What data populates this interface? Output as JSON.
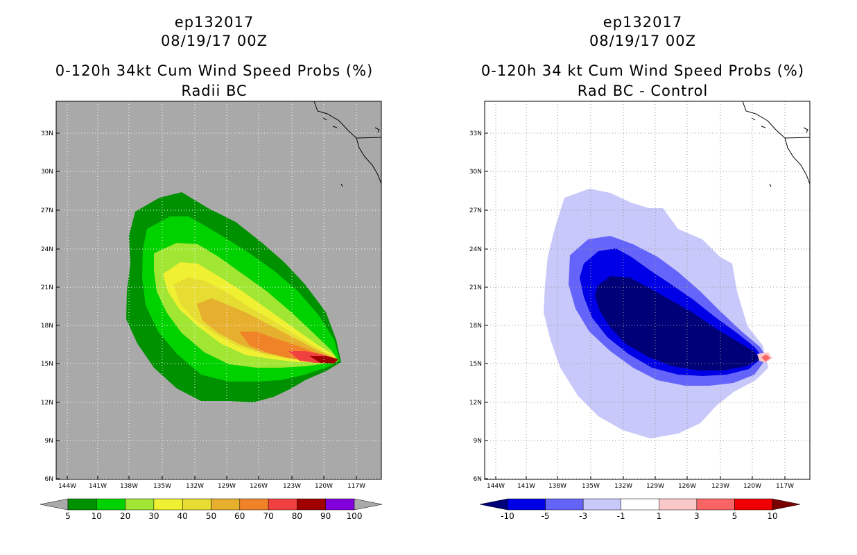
{
  "panels": [
    {
      "id": "left",
      "storm_id": "ep132017",
      "datetime": "08/19/17 00Z",
      "title": "0-120h 34kt Cum Wind Speed Probs (%)",
      "subtitle": "Radii BC",
      "background_color": "#a9a9a9",
      "grid_color": "#ffffff",
      "colorbar": {
        "colors": [
          "#009100",
          "#00d200",
          "#a0e632",
          "#f0f032",
          "#e6dc32",
          "#e6af2d",
          "#f08228",
          "#f04040",
          "#a00000",
          "#8200dc"
        ],
        "under_color": "#a9a9a9",
        "over_color": "#a9a9a9",
        "labels": [
          "5",
          "10",
          "20",
          "30",
          "40",
          "50",
          "60",
          "70",
          "80",
          "90",
          "100"
        ]
      }
    },
    {
      "id": "right",
      "storm_id": "ep132017",
      "datetime": "08/19/17 00Z",
      "title": "0-120h 34 kt Cum Wind Speed Probs (%)",
      "subtitle": "Rad BC - Control",
      "background_color": "#ffffff",
      "grid_color": "#9a9a9a",
      "colorbar": {
        "colors": [
          "#0000e6",
          "#6464fa",
          "#c8c8fa",
          "#ffffff",
          "#fac8c8",
          "#fa6464",
          "#f00000"
        ],
        "under_color": "#000078",
        "over_color": "#780000",
        "labels": [
          "-10",
          "-5",
          "-3",
          "-1",
          "1",
          "3",
          "5",
          "10"
        ]
      }
    }
  ],
  "map": {
    "lat_ticks": [
      "33N",
      "30N",
      "27N",
      "24N",
      "21N",
      "18N",
      "15N",
      "12N",
      "9N",
      "6N"
    ],
    "lon_ticks": [
      "144W",
      "141W",
      "138W",
      "135W",
      "132W",
      "129W",
      "126W",
      "123W",
      "120W",
      "117W"
    ]
  }
}
